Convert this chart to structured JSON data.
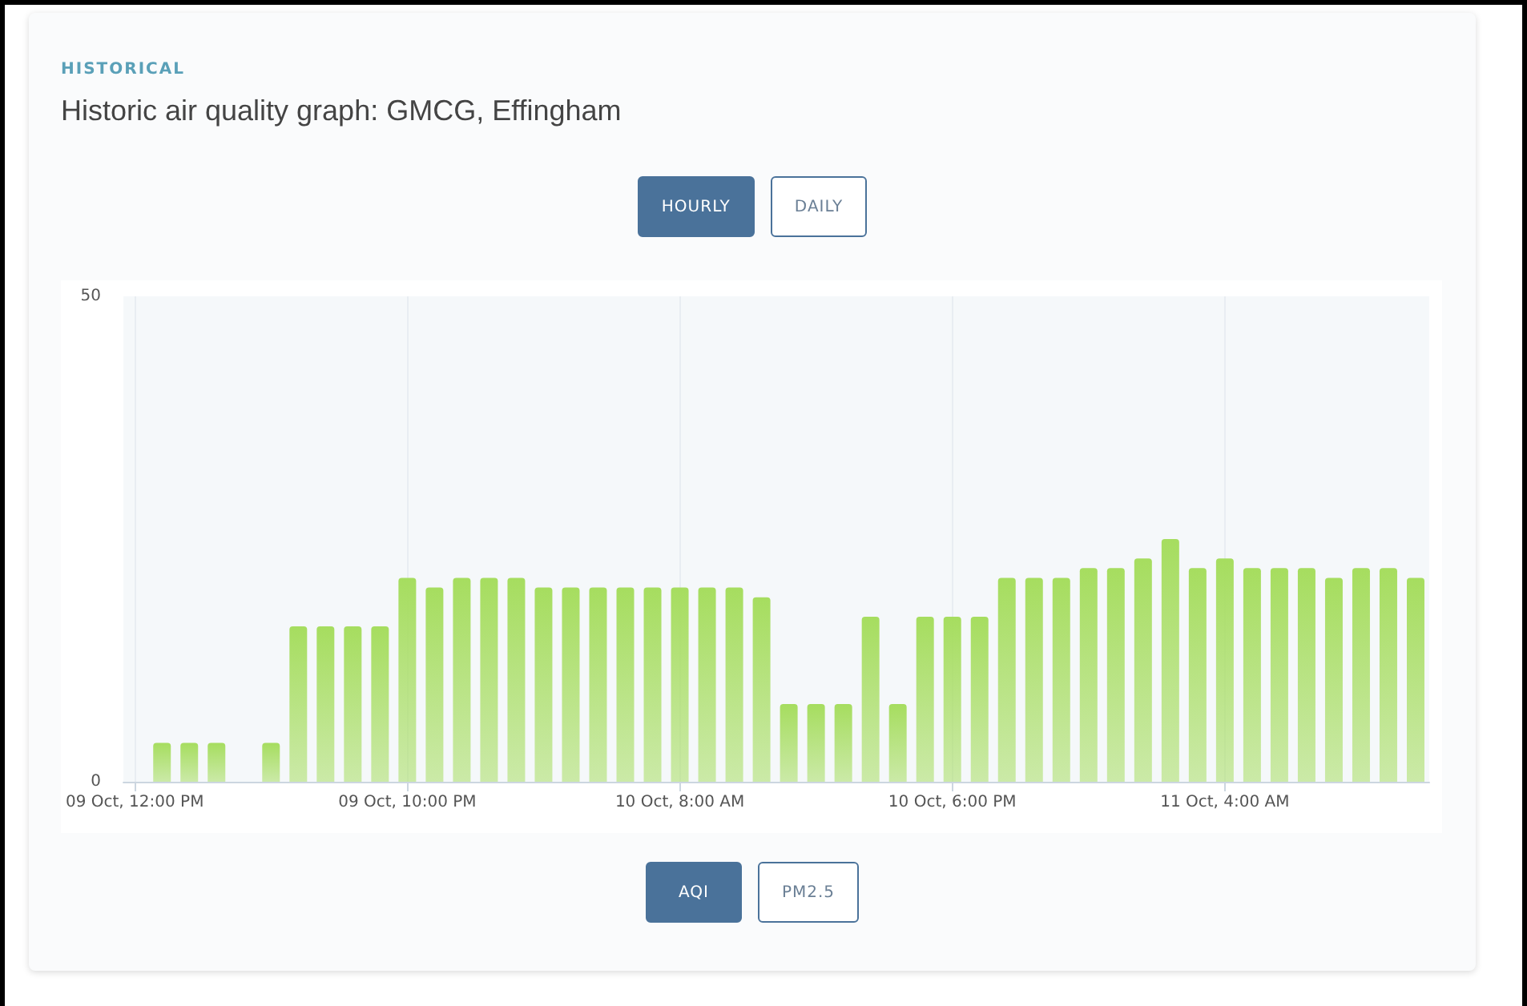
{
  "chart_data": {
    "type": "bar",
    "title": "Historic air quality graph: GMCG, Effingham",
    "subtitle": "HISTORICAL",
    "annotations": [
      "HOURLY",
      "DAILY",
      "AQI",
      "PM2.5"
    ],
    "x": [
      "--10-09T13:00",
      "--10-09T14:00",
      "--10-09T15:00",
      "--10-09T16:00",
      "--10-09T17:00",
      "--10-09T18:00",
      "--10-09T19:00",
      "--10-09T20:00",
      "--10-09T21:00",
      "--10-09T22:00",
      "--10-09T23:00",
      "--10-10T00:00",
      "--10-10T01:00",
      "--10-10T02:00",
      "--10-10T03:00",
      "--10-10T04:00",
      "--10-10T05:00",
      "--10-10T06:00",
      "--10-10T07:00",
      "--10-10T08:00",
      "--10-10T09:00",
      "--10-10T10:00",
      "--10-10T11:00",
      "--10-10T12:00",
      "--10-10T13:00",
      "--10-10T14:00",
      "--10-10T15:00",
      "--10-10T16:00",
      "--10-10T17:00",
      "--10-10T18:00",
      "--10-10T19:00",
      "--10-10T20:00",
      "--10-10T21:00",
      "--10-10T22:00",
      "--10-10T23:00",
      "--10-11T00:00",
      "--10-11T01:00",
      "--10-11T02:00",
      "--10-11T03:00",
      "--10-11T04:00",
      "--10-11T05:00",
      "--10-11T06:00",
      "--10-11T07:00",
      "--10-11T08:00",
      "--10-11T09:00",
      "--10-11T10:00",
      "--10-11T11:00"
    ],
    "values": [
      4,
      4,
      4,
      null,
      4,
      16,
      16,
      16,
      16,
      21,
      20,
      21,
      21,
      21,
      20,
      20,
      20,
      20,
      20,
      20,
      20,
      20,
      19,
      8,
      8,
      8,
      17,
      8,
      17,
      17,
      17,
      21,
      21,
      21,
      22,
      22,
      23,
      25,
      22,
      23,
      22,
      22,
      22,
      21,
      22,
      22,
      21
    ],
    "color": "#a6dd5f",
    "xlim": [
      "--10-09T11:35",
      "--10-11T11:30"
    ],
    "xticks": [
      {
        "value": "--10-09T12:00",
        "label": "09 Oct, 12:00 PM"
      },
      {
        "value": "--10-09T22:00",
        "label": "09 Oct, 10:00 PM"
      },
      {
        "value": "--10-10T08:00",
        "label": "10 Oct, 8:00 AM"
      },
      {
        "value": "--10-10T18:00",
        "label": "10 Oct, 6:00 PM"
      },
      {
        "value": "--10-11T04:00",
        "label": "11 Oct, 4:00 AM"
      }
    ],
    "ylim": [
      0,
      50
    ],
    "yticks": [
      0,
      50
    ],
    "grid": "x"
  }
}
